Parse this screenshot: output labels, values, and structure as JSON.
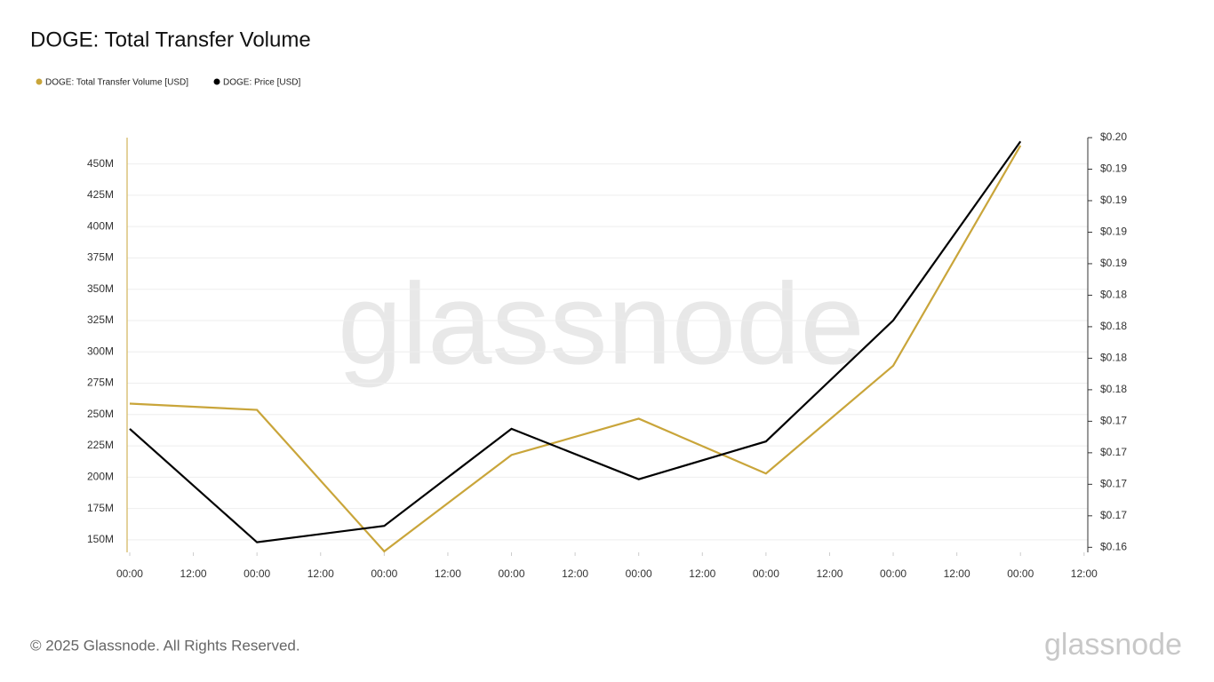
{
  "chart_data": {
    "type": "line",
    "title": "DOGE: Total Transfer Volume",
    "watermark": "glassnode",
    "footer": "© 2025 Glassnode. All Rights Reserved.",
    "brand": "glassnode",
    "x": [
      0,
      24,
      48,
      72,
      96,
      120,
      144,
      168
    ],
    "xlim": [
      -0.5,
      180.7
    ],
    "xticks": [
      {
        "value": 0,
        "label": "00:00"
      },
      {
        "value": 12,
        "label": "12:00"
      },
      {
        "value": 24,
        "label": "00:00"
      },
      {
        "value": 36,
        "label": "12:00"
      },
      {
        "value": 48,
        "label": "00:00"
      },
      {
        "value": 60,
        "label": "12:00"
      },
      {
        "value": 72,
        "label": "00:00"
      },
      {
        "value": 84,
        "label": "12:00"
      },
      {
        "value": 96,
        "label": "00:00"
      },
      {
        "value": 108,
        "label": "12:00"
      },
      {
        "value": 120,
        "label": "00:00"
      },
      {
        "value": 132,
        "label": "12:00"
      },
      {
        "value": 144,
        "label": "00:00"
      },
      {
        "value": 156,
        "label": "12:00"
      },
      {
        "value": 168,
        "label": "00:00"
      },
      {
        "value": 180,
        "label": "12:00"
      }
    ],
    "ylim": [
      140,
      471
    ],
    "yticks": [
      {
        "value": 150,
        "label": "150M"
      },
      {
        "value": 175,
        "label": "175M"
      },
      {
        "value": 200,
        "label": "200M"
      },
      {
        "value": 225,
        "label": "225M"
      },
      {
        "value": 250,
        "label": "250M"
      },
      {
        "value": 275,
        "label": "275M"
      },
      {
        "value": 300,
        "label": "300M"
      },
      {
        "value": 325,
        "label": "325M"
      },
      {
        "value": 350,
        "label": "350M"
      },
      {
        "value": 375,
        "label": "375M"
      },
      {
        "value": 400,
        "label": "400M"
      },
      {
        "value": 425,
        "label": "425M"
      },
      {
        "value": 450,
        "label": "450M"
      }
    ],
    "y2lim": [
      0.1641,
      0.197
    ],
    "y2ticks": [
      {
        "value": 0.1645,
        "label": "$0.16"
      },
      {
        "value": 0.167,
        "label": "$0.17"
      },
      {
        "value": 0.1695,
        "label": "$0.17"
      },
      {
        "value": 0.172,
        "label": "$0.17"
      },
      {
        "value": 0.1745,
        "label": "$0.17"
      },
      {
        "value": 0.177,
        "label": "$0.18"
      },
      {
        "value": 0.1795,
        "label": "$0.18"
      },
      {
        "value": 0.182,
        "label": "$0.18"
      },
      {
        "value": 0.1845,
        "label": "$0.18"
      },
      {
        "value": 0.187,
        "label": "$0.19"
      },
      {
        "value": 0.1895,
        "label": "$0.19"
      },
      {
        "value": 0.192,
        "label": "$0.19"
      },
      {
        "value": 0.1945,
        "label": "$0.19"
      },
      {
        "value": 0.197,
        "label": "$0.20"
      }
    ],
    "grid": true,
    "series": [
      {
        "name": "DOGE: Total Transfer Volume [USD]",
        "color": "#c9a53a",
        "values": [
          258.7,
          253.7,
          140.8,
          217.7,
          246.7,
          202.9,
          289,
          464.7
        ]
      },
      {
        "name": "DOGE: Price [USD]",
        "color": "#000000",
        "axis": "y2",
        "values": [
          0.1739,
          0.1649,
          0.1662,
          0.1739,
          0.1699,
          0.1729,
          0.1825,
          0.1967
        ]
      }
    ]
  }
}
